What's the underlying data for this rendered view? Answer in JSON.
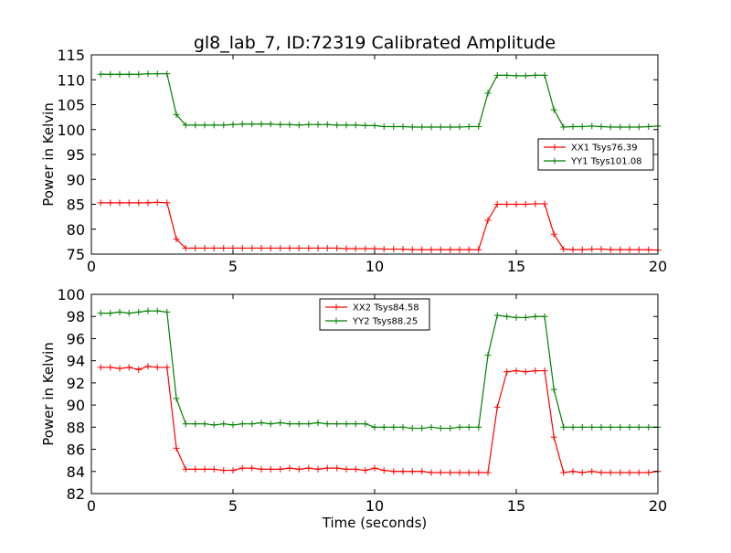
{
  "chart_data": [
    {
      "type": "line",
      "title": "gl8_lab_7, ID:72319 Calibrated Amplitude",
      "xlabel": "",
      "ylabel": "Power in Kelvin",
      "xlim": [
        0,
        20
      ],
      "ylim": [
        75,
        115
      ],
      "xticks": [
        0,
        5,
        10,
        15,
        20
      ],
      "yticks": [
        75,
        80,
        85,
        90,
        95,
        100,
        105,
        110,
        115
      ],
      "grid": false,
      "legend_position": "center-right",
      "x": [
        0.33,
        0.67,
        1.0,
        1.33,
        1.67,
        2.0,
        2.33,
        2.67,
        3.0,
        3.33,
        3.67,
        4.0,
        4.33,
        4.67,
        5.0,
        5.33,
        5.67,
        6.0,
        6.33,
        6.67,
        7.0,
        7.33,
        7.67,
        8.0,
        8.33,
        8.67,
        9.0,
        9.33,
        9.67,
        10.0,
        10.33,
        10.67,
        11.0,
        11.33,
        11.67,
        12.0,
        12.33,
        12.67,
        13.0,
        13.33,
        13.67,
        14.0,
        14.33,
        14.67,
        15.0,
        15.33,
        15.67,
        16.0,
        16.33,
        16.67,
        17.0,
        17.33,
        17.67,
        18.0,
        18.33,
        18.67,
        19.0,
        19.33,
        19.67,
        20.0
      ],
      "series": [
        {
          "name": "XX1 Tsys76.39",
          "color": "#ff0000",
          "values": [
            85.3,
            85.3,
            85.3,
            85.3,
            85.3,
            85.3,
            85.4,
            85.3,
            78.0,
            76.2,
            76.2,
            76.2,
            76.2,
            76.2,
            76.2,
            76.2,
            76.2,
            76.2,
            76.2,
            76.2,
            76.2,
            76.2,
            76.2,
            76.2,
            76.2,
            76.2,
            76.1,
            76.1,
            76.1,
            76.1,
            76.0,
            76.0,
            76.0,
            75.9,
            75.9,
            75.9,
            75.9,
            75.9,
            75.9,
            75.9,
            75.9,
            81.8,
            85.0,
            85.0,
            85.0,
            85.0,
            85.1,
            85.1,
            79.0,
            76.0,
            75.9,
            75.9,
            76.0,
            76.0,
            75.9,
            75.9,
            75.9,
            75.9,
            75.9,
            75.8
          ]
        },
        {
          "name": "YY1 Tsys101.08",
          "color": "#008000",
          "values": [
            111.1,
            111.1,
            111.1,
            111.1,
            111.1,
            111.2,
            111.2,
            111.2,
            103.0,
            100.9,
            100.9,
            100.9,
            100.9,
            100.9,
            101.0,
            101.1,
            101.1,
            101.1,
            101.1,
            101.0,
            101.0,
            100.9,
            101.0,
            101.0,
            101.0,
            100.9,
            100.9,
            100.9,
            100.8,
            100.8,
            100.6,
            100.6,
            100.6,
            100.5,
            100.5,
            100.5,
            100.5,
            100.5,
            100.5,
            100.6,
            100.6,
            107.3,
            110.9,
            110.9,
            110.8,
            110.8,
            110.9,
            110.9,
            104.0,
            100.5,
            100.6,
            100.6,
            100.7,
            100.6,
            100.5,
            100.5,
            100.5,
            100.5,
            100.6,
            100.7
          ]
        }
      ]
    },
    {
      "type": "line",
      "title": "",
      "xlabel": "Time (seconds)",
      "ylabel": "Power in Kelvin",
      "xlim": [
        0,
        20
      ],
      "ylim": [
        82,
        100
      ],
      "xticks": [
        0,
        5,
        10,
        15,
        20
      ],
      "yticks": [
        82,
        84,
        86,
        88,
        90,
        92,
        94,
        96,
        98,
        100
      ],
      "grid": false,
      "legend_position": "top-center",
      "x": [
        0.33,
        0.67,
        1.0,
        1.33,
        1.67,
        2.0,
        2.33,
        2.67,
        3.0,
        3.33,
        3.67,
        4.0,
        4.33,
        4.67,
        5.0,
        5.33,
        5.67,
        6.0,
        6.33,
        6.67,
        7.0,
        7.33,
        7.67,
        8.0,
        8.33,
        8.67,
        9.0,
        9.33,
        9.67,
        10.0,
        10.33,
        10.67,
        11.0,
        11.33,
        11.67,
        12.0,
        12.33,
        12.67,
        13.0,
        13.33,
        13.67,
        14.0,
        14.33,
        14.67,
        15.0,
        15.33,
        15.67,
        16.0,
        16.33,
        16.67,
        17.0,
        17.33,
        17.67,
        18.0,
        18.33,
        18.67,
        19.0,
        19.33,
        19.67,
        20.0
      ],
      "series": [
        {
          "name": "XX2 Tsys84.58",
          "color": "#ff0000",
          "values": [
            93.4,
            93.4,
            93.3,
            93.4,
            93.2,
            93.5,
            93.4,
            93.4,
            86.1,
            84.2,
            84.2,
            84.2,
            84.2,
            84.1,
            84.1,
            84.3,
            84.3,
            84.2,
            84.2,
            84.2,
            84.3,
            84.2,
            84.3,
            84.2,
            84.3,
            84.3,
            84.2,
            84.2,
            84.1,
            84.3,
            84.1,
            84.0,
            84.0,
            84.0,
            84.0,
            83.9,
            83.9,
            83.9,
            83.9,
            83.9,
            83.9,
            83.9,
            89.8,
            93.0,
            93.1,
            93.0,
            93.1,
            93.1,
            87.1,
            83.9,
            84.0,
            83.9,
            84.0,
            83.9,
            83.9,
            83.9,
            83.9,
            83.9,
            83.9,
            84.0
          ]
        },
        {
          "name": "YY2 Tsys88.25",
          "color": "#008000",
          "values": [
            98.3,
            98.3,
            98.4,
            98.3,
            98.4,
            98.5,
            98.5,
            98.4,
            90.6,
            88.3,
            88.3,
            88.3,
            88.2,
            88.3,
            88.2,
            88.3,
            88.3,
            88.4,
            88.3,
            88.4,
            88.3,
            88.3,
            88.3,
            88.4,
            88.3,
            88.3,
            88.3,
            88.3,
            88.3,
            88.0,
            88.0,
            88.0,
            88.0,
            87.9,
            87.9,
            88.0,
            87.9,
            87.9,
            88.0,
            88.0,
            88.0,
            94.5,
            98.1,
            98.0,
            97.9,
            97.9,
            98.0,
            98.0,
            91.4,
            88.0,
            88.0,
            88.0,
            88.0,
            88.0,
            88.0,
            88.0,
            88.0,
            88.0,
            88.0,
            88.0
          ]
        }
      ]
    }
  ]
}
